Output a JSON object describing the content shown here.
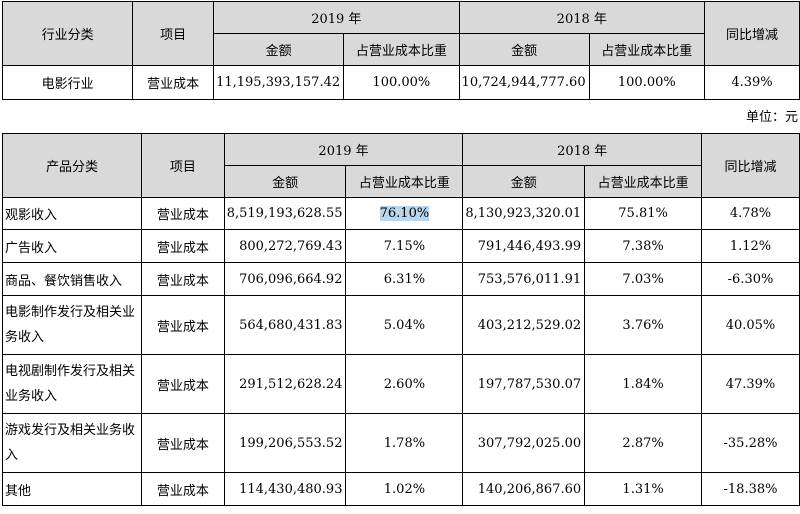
{
  "table1": {
    "headers": {
      "category": "行业分类",
      "item": "项目",
      "year_2019": "2019 年",
      "year_2018": "2018 年",
      "yoy": "同比增减",
      "amount_2019": "金额",
      "ratio_2019": "占营业成本比重",
      "amount_2018": "金额",
      "ratio_2018": "占营业成本比重"
    },
    "rows": [
      {
        "category": "电影行业",
        "item": "营业成本",
        "amount_2019": "11,195,393,157.42",
        "ratio_2019": "100.00%",
        "amount_2018": "10,724,944,777.60",
        "ratio_2018": "100.00%",
        "yoy": "4.39%"
      }
    ]
  },
  "unit_label": "单位：元",
  "table2": {
    "headers": {
      "category": "产品分类",
      "item": "项目",
      "year_2019": "2019 年",
      "year_2018": "2018 年",
      "yoy": "同比增减",
      "amount_2019": "金额",
      "ratio_2019": "占营业成本比重",
      "amount_2018": "金额",
      "ratio_2018": "占营业成本比重"
    },
    "rows": [
      {
        "category": "观影收入",
        "item": "营业成本",
        "amount_2019": "8,519,193,628.55",
        "ratio_2019": "76.10%",
        "amount_2018": "8,130,923,320.01",
        "ratio_2018": "75.81%",
        "yoy": "4.78%"
      },
      {
        "category": "广告收入",
        "item": "营业成本",
        "amount_2019": "800,272,769.43",
        "ratio_2019": "7.15%",
        "amount_2018": "791,446,493.99",
        "ratio_2018": "7.38%",
        "yoy": "1.12%"
      },
      {
        "category": "商品、餐饮销售收入",
        "item": "营业成本",
        "amount_2019": "706,096,664.92",
        "ratio_2019": "6.31%",
        "amount_2018": "753,576,011.91",
        "ratio_2018": "7.03%",
        "yoy": "-6.30%"
      },
      {
        "category": "电影制作发行及相关业务收入",
        "item": "营业成本",
        "amount_2019": "564,680,431.83",
        "ratio_2019": "5.04%",
        "amount_2018": "403,212,529.02",
        "ratio_2018": "3.76%",
        "yoy": "40.05%"
      },
      {
        "category": "电视剧制作发行及相关业务收入",
        "item": "营业成本",
        "amount_2019": "291,512,628.24",
        "ratio_2019": "2.60%",
        "amount_2018": "197,787,530.07",
        "ratio_2018": "1.84%",
        "yoy": "47.39%"
      },
      {
        "category": "游戏发行及相关业务收入",
        "item": "营业成本",
        "amount_2019": "199,206,553.52",
        "ratio_2019": "1.78%",
        "amount_2018": "307,792,025.00",
        "ratio_2018": "2.87%",
        "yoy": "-35.28%"
      },
      {
        "category": "其他",
        "item": "营业成本",
        "amount_2019": "114,430,480.93",
        "ratio_2019": "1.02%",
        "amount_2018": "140,206,867.60",
        "ratio_2018": "1.31%",
        "yoy": "-18.38%"
      }
    ]
  }
}
